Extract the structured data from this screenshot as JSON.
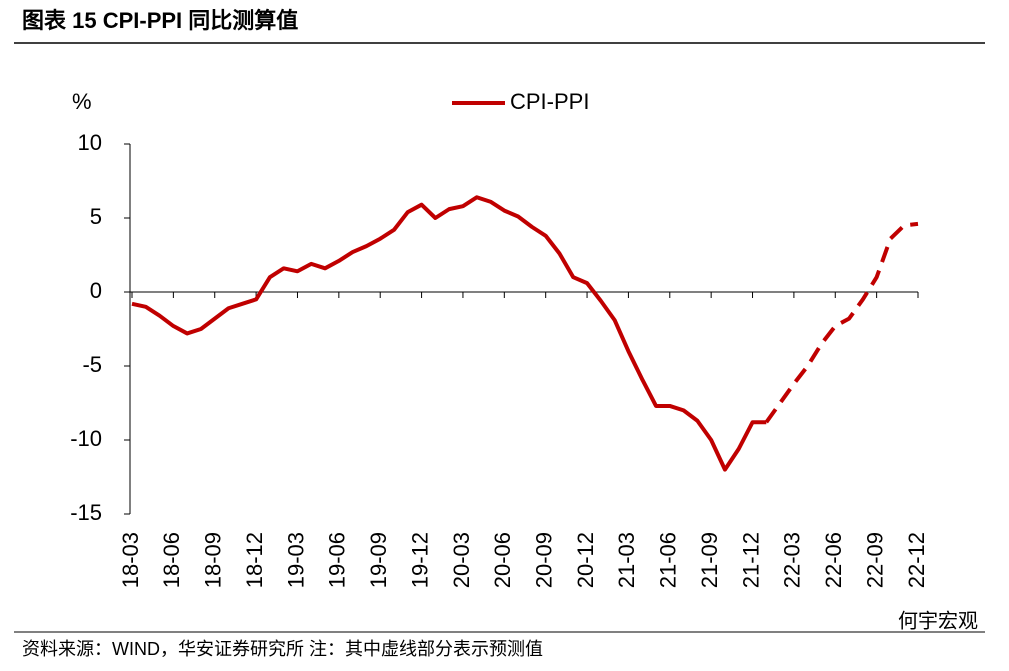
{
  "header": {
    "title": "图表 15 CPI-PPI 同比测算值"
  },
  "chart_data": {
    "type": "line",
    "y_unit": "%",
    "categories": [
      "18-03",
      null,
      null,
      "18-06",
      null,
      null,
      "18-09",
      null,
      null,
      "18-12",
      null,
      null,
      "19-03",
      null,
      null,
      "19-06",
      null,
      null,
      "19-09",
      null,
      null,
      "19-12",
      null,
      null,
      "20-03",
      null,
      null,
      "20-06",
      null,
      null,
      "20-09",
      null,
      null,
      "20-12",
      null,
      null,
      "21-03",
      null,
      null,
      "21-06",
      null,
      null,
      "21-09",
      null,
      null,
      "21-12",
      null,
      null,
      "22-03",
      null,
      null,
      "22-06",
      null,
      null,
      "22-09",
      null,
      null,
      "22-12"
    ],
    "series": [
      {
        "name": "CPI-PPI",
        "color": "#c00000",
        "values": [
          -0.8,
          -1.0,
          -1.6,
          -2.3,
          -2.8,
          -2.5,
          -1.8,
          -1.1,
          -0.8,
          -0.5,
          1.0,
          1.6,
          1.4,
          1.9,
          1.6,
          2.1,
          2.7,
          3.1,
          3.6,
          4.2,
          5.4,
          5.9,
          5.0,
          5.6,
          5.8,
          6.4,
          6.1,
          5.5,
          5.1,
          4.4,
          3.8,
          2.6,
          1.0,
          0.6,
          -0.6,
          -1.9,
          -4.0,
          -5.9,
          -7.7,
          -7.7,
          -8.0,
          -8.7,
          -10.0,
          -12.0,
          -10.6,
          -8.8,
          -8.8,
          -7.5,
          -6.2,
          -5.0,
          -3.5,
          -2.3,
          -1.8,
          -0.5,
          1.0,
          3.6,
          4.5,
          4.6
        ],
        "dashed_from": 46
      }
    ],
    "ylim": [
      -15,
      10
    ],
    "yticks": [
      -15,
      -10,
      -5,
      0,
      5,
      10
    ],
    "grid": false,
    "legend": "top"
  },
  "footer": {
    "source": "资料来源：WIND，华安证券研究所  注：其中虚线部分表示预测值",
    "watermark": "何宇宏观"
  }
}
